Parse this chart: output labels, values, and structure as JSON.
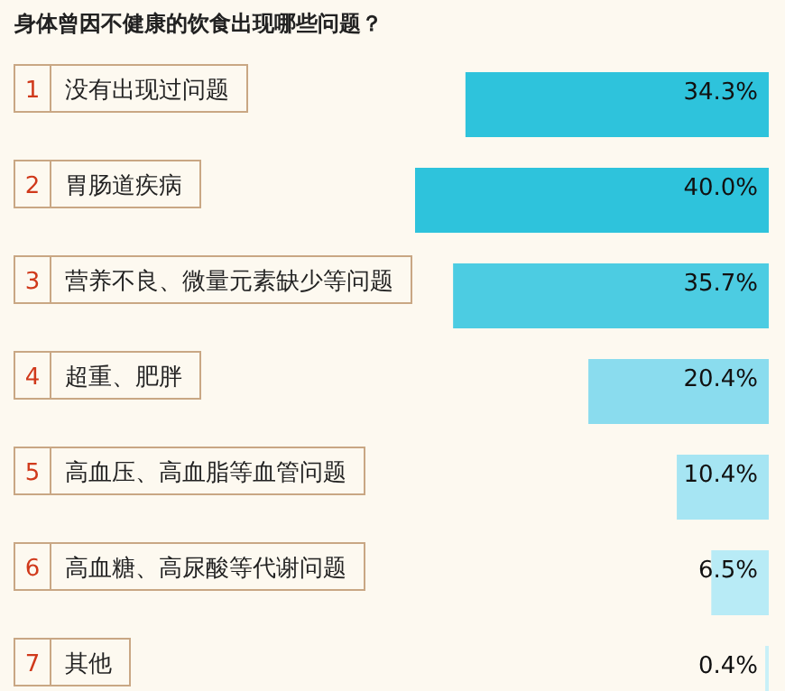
{
  "chart_data": {
    "type": "bar",
    "orientation": "horizontal",
    "title": "身体曾因不健康的饮食出现哪些问题？",
    "categories": [
      "1 没有出现过问题",
      "2 胃肠道疾病",
      "3 营养不良、微量元素缺少等问题",
      "4 超重、肥胖",
      "5 高血压、高血脂等血管问题",
      "6 高血糖、高尿酸等代谢问题",
      "7 其他"
    ],
    "values": [
      34.3,
      40.0,
      35.7,
      20.4,
      10.4,
      6.5,
      0.4
    ],
    "value_labels": [
      "34.3%",
      "40.0%",
      "35.7%",
      "20.4%",
      "10.4%",
      "6.5%",
      "0.4%"
    ],
    "colors": [
      "#2ec3dc",
      "#2ec3dc",
      "#4ccce2",
      "#8adcee",
      "#a6e5f3",
      "#b8ebf6",
      "#c8f0f8"
    ]
  }
}
